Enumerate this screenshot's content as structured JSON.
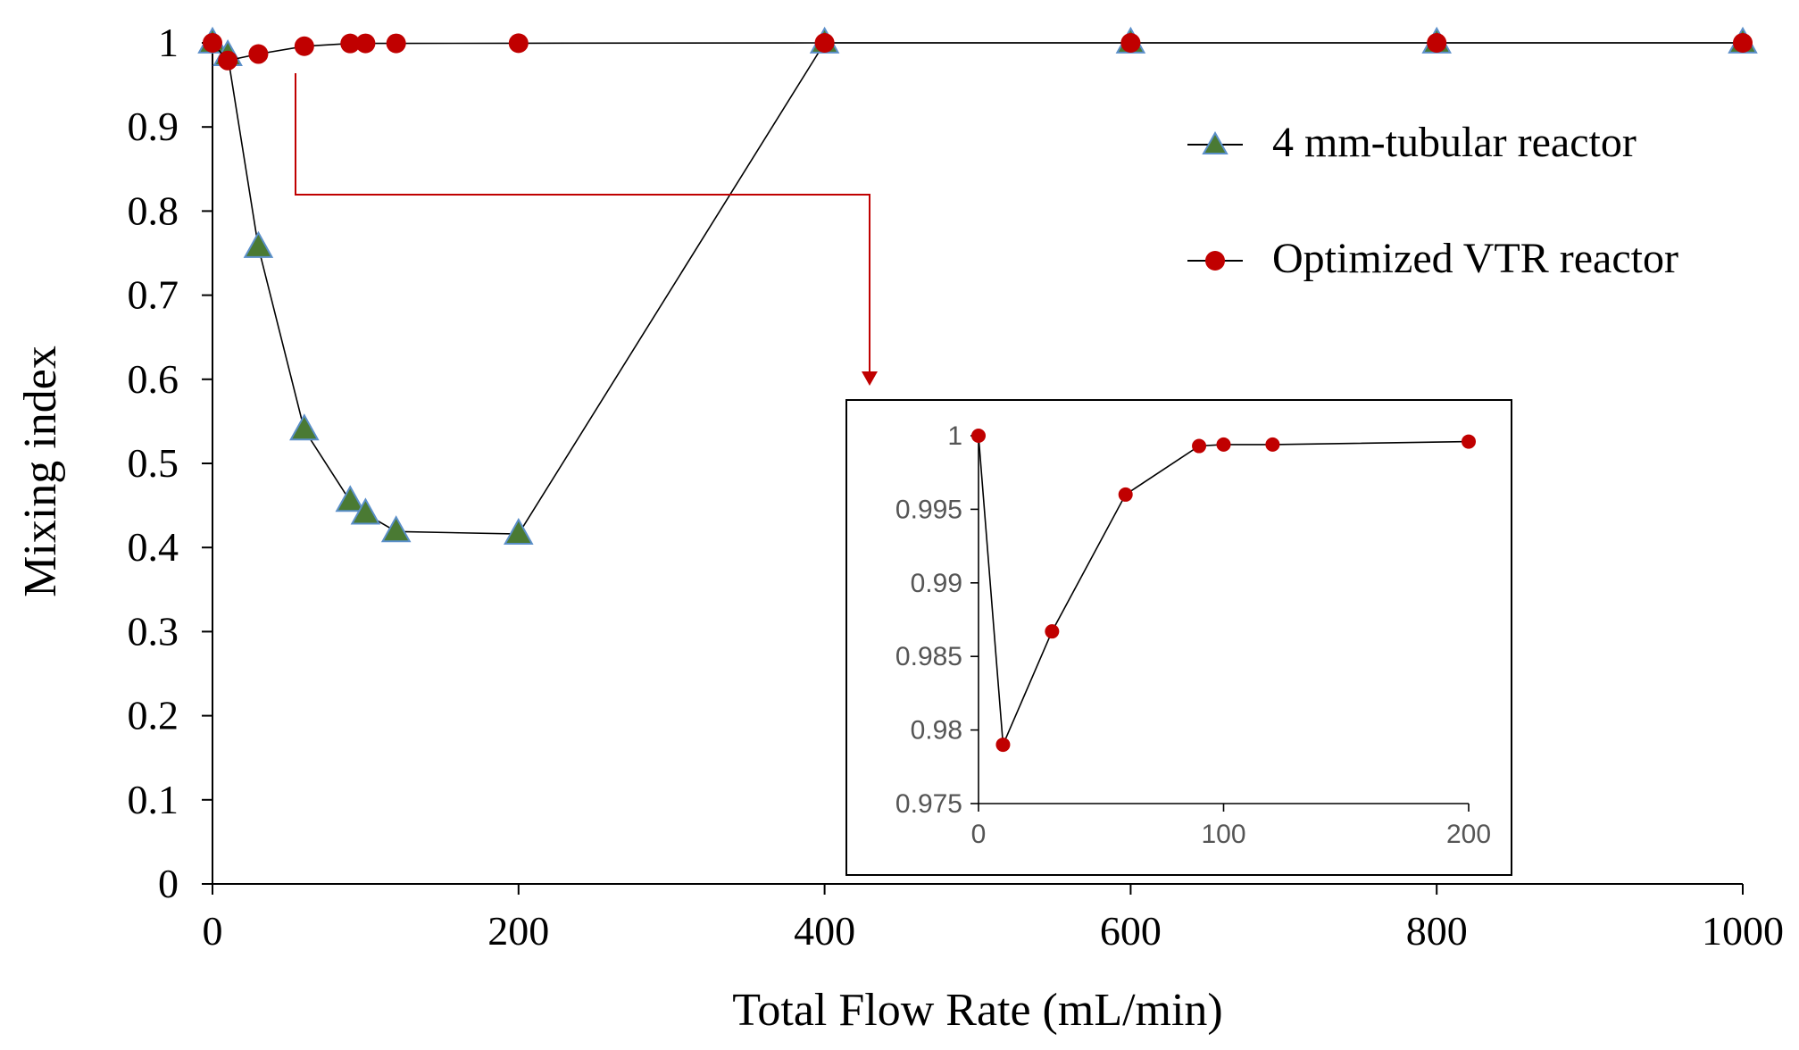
{
  "chart_data": [
    {
      "type": "line",
      "title": "",
      "xlabel": "Total Flow Rate (mL/min)",
      "ylabel": "Mixing index",
      "xlim": [
        0,
        1000
      ],
      "ylim": [
        0,
        1
      ],
      "xticks": [
        0,
        200,
        400,
        600,
        800,
        1000
      ],
      "yticks": [
        0,
        0.1,
        0.2,
        0.3,
        0.4,
        0.5,
        0.6,
        0.7,
        0.8,
        0.9,
        1
      ],
      "xtick_labels": [
        "0",
        "200",
        "400",
        "600",
        "800",
        "1000"
      ],
      "ytick_labels": [
        "0",
        "0.1",
        "0.2",
        "0.3",
        "0.4",
        "0.5",
        "0.6",
        "0.7",
        "0.8",
        "0.9",
        "1"
      ],
      "legend_position": "top-right",
      "series": [
        {
          "name": "4 mm-tubular reactor",
          "marker": "triangle",
          "marker_color": "#4a7a33",
          "x": [
            0,
            10,
            30,
            60,
            90,
            100,
            120,
            200,
            400,
            600,
            800,
            1000
          ],
          "y": [
            1.0,
            0.985,
            0.757,
            0.54,
            0.455,
            0.44,
            0.419,
            0.416,
            1.0,
            1.0,
            1.0,
            1.0
          ]
        },
        {
          "name": "Optimized VTR reactor",
          "marker": "circle",
          "marker_color": "#c00000",
          "x": [
            0,
            10,
            30,
            60,
            90,
            100,
            120,
            200,
            400,
            600,
            800,
            1000
          ],
          "y": [
            1.0,
            0.979,
            0.9867,
            0.996,
            0.9993,
            0.9994,
            0.9994,
            0.9996,
            1.0,
            1.0,
            1.0,
            1.0
          ]
        }
      ]
    },
    {
      "type": "line",
      "title": "",
      "xlabel": "",
      "ylabel": "",
      "xlim": [
        0,
        200
      ],
      "ylim": [
        0.975,
        1
      ],
      "xticks": [
        0,
        100,
        200
      ],
      "yticks": [
        0.975,
        0.98,
        0.985,
        0.99,
        0.995,
        1
      ],
      "xtick_labels": [
        "0",
        "100",
        "200"
      ],
      "ytick_labels": [
        "0.975",
        "0.98",
        "0.985",
        "0.99",
        "0.995",
        "1"
      ],
      "series": [
        {
          "name": "Optimized VTR reactor",
          "marker": "circle",
          "marker_color": "#c00000",
          "x": [
            0,
            10,
            30,
            60,
            90,
            100,
            120,
            200
          ],
          "y": [
            1.0,
            0.979,
            0.9867,
            0.996,
            0.9993,
            0.9994,
            0.9994,
            0.9996
          ]
        }
      ]
    }
  ],
  "colors": {
    "line": "#000000",
    "arrow": "#c00000",
    "triangle_fill": "#4a7a33",
    "triangle_stroke": "#5b8fc9",
    "circle_fill": "#c00000"
  }
}
